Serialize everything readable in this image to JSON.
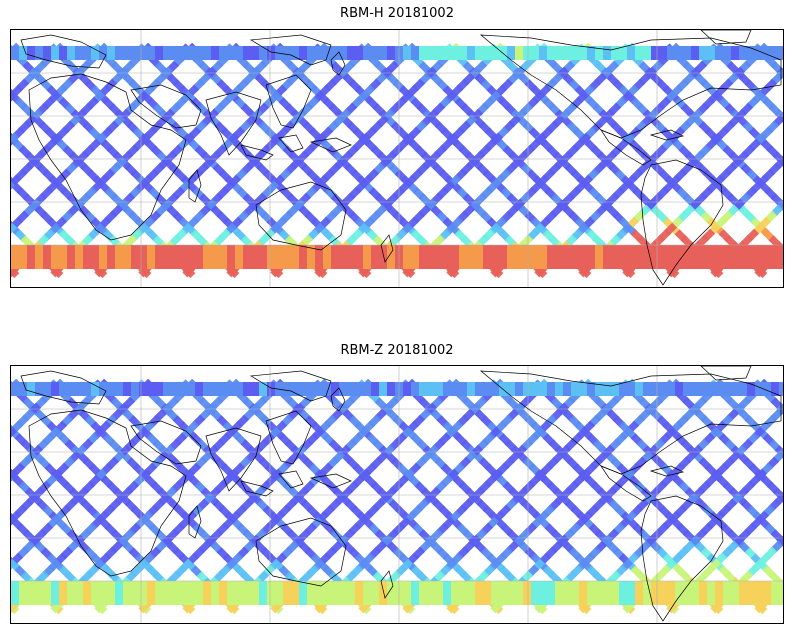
{
  "panels": [
    {
      "title": "RBM-H 20181002",
      "palette": [
        "#5b5ef0",
        "#5b8cf2",
        "#5cc0f5",
        "#6ef0e0",
        "#c8f47a",
        "#f7d25a",
        "#f59a4a",
        "#e8605a"
      ],
      "intensity": {
        "south_band": 0.75,
        "south_america_south": 0.95,
        "north_band_pacific": 0.6,
        "tropics": 0.05
      }
    },
    {
      "title": "RBM-Z 20181002",
      "palette": [
        "#5b5ef0",
        "#5b8cf2",
        "#5cc0f5",
        "#6ef0e0",
        "#c8f47a",
        "#f7d25a",
        "#f59a4a",
        "#e8605a"
      ],
      "intensity": {
        "south_band": 0.35,
        "south_america_south": 0.5,
        "north_band_pacific": 0.2,
        "tropics": 0.05
      }
    }
  ],
  "colors": {
    "coastline": "#000000",
    "gridline": "#b0b0b0",
    "frame": "#000000"
  }
}
